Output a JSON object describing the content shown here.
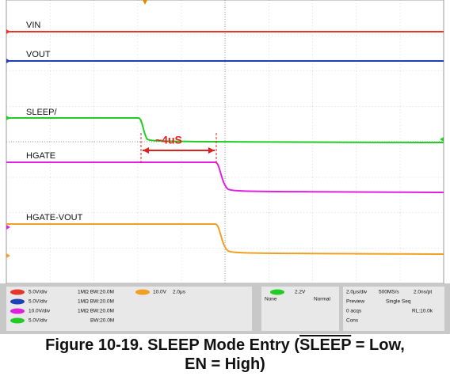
{
  "traces": [
    "VIN",
    "VOUT",
    "SLEEP/",
    "HGATE",
    "HGATE-VOUT"
  ],
  "annotation": "~4uS",
  "status": {
    "channels": [
      [
        "5.0V/div",
        "1MΩ BW:20.0M"
      ],
      [
        "5.0V/div",
        "1MΩ BW:20.0M"
      ],
      [
        "10.0V/div",
        "1MΩ BW:20.0M"
      ],
      [
        "5.0V/div",
        "BW:20.0M"
      ]
    ],
    "math": [
      "10.0V",
      "2.0μs"
    ],
    "trigger": [
      "2.2V",
      "None",
      "Normal"
    ],
    "timebase": [
      [
        "2.0μs/div",
        "500MS/s",
        "2.0ns/pt"
      ],
      [
        "Preview",
        "Single Seq"
      ],
      [
        "0 acqs",
        "RL:10.0k"
      ],
      [
        "Cons"
      ]
    ]
  },
  "caption": {
    "prefix": "Figure 10-19. SLEEP Mode Entry (",
    "overlined": "SLEEP",
    "suffix": " = Low,",
    "line2": "EN = High)"
  }
}
